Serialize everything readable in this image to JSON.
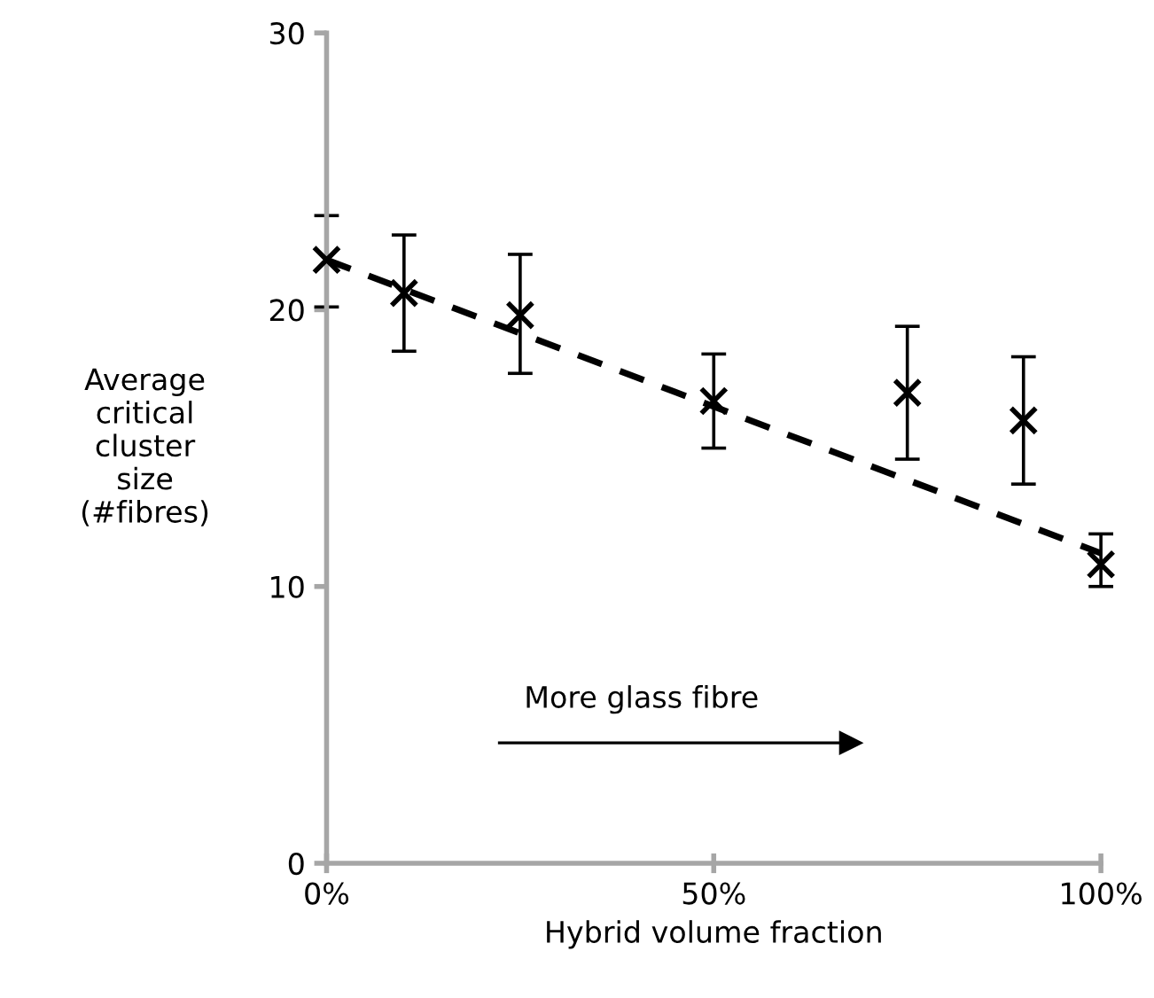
{
  "chart_data": {
    "type": "scatter",
    "xlabel": "Hybrid volume fraction",
    "ylabel": "Average\ncritical\ncluster\nsize\n(#fibres)",
    "x": [
      0,
      10,
      25,
      50,
      75,
      90,
      100
    ],
    "series": [
      {
        "color": "#000000",
        "marker": "cross",
        "values": [
          21.8,
          20.6,
          19.8,
          16.7,
          17.0,
          16.0,
          10.8
        ],
        "errors": [
          [
            20.1,
            23.4
          ],
          [
            18.5,
            22.7
          ],
          [
            17.7,
            22.0
          ],
          [
            15.0,
            18.4
          ],
          [
            14.6,
            19.4
          ],
          [
            13.7,
            18.3
          ],
          [
            10.0,
            11.9
          ]
        ]
      },
      {
        "type": "line",
        "color": "#000000",
        "line_style": "dashed",
        "x": [
          0,
          100
        ],
        "values": [
          21.8,
          11.2
        ]
      }
    ],
    "xlim": [
      0,
      100
    ],
    "xticks": [
      {
        "value": 0,
        "label": "0%"
      },
      {
        "value": 50,
        "label": "50%"
      },
      {
        "value": 100,
        "label": "100%"
      }
    ],
    "ylim": [
      0,
      30
    ],
    "yticks": [
      0,
      10,
      20,
      30
    ],
    "grid": false,
    "legend": false,
    "annotations": [
      "More glass fibre"
    ]
  }
}
